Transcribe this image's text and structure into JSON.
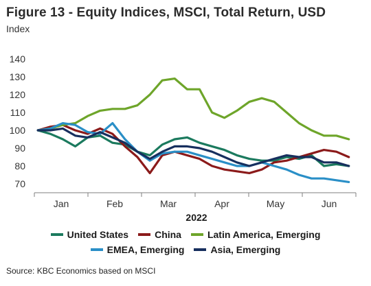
{
  "header": {
    "title": "Figure 13 - Equity Indices, MSCI, Total Return, USD",
    "subtitle": "Index"
  },
  "footer": {
    "source": "Source: KBC Economics based on MSCI"
  },
  "chart_data": {
    "type": "line",
    "title": "Figure 13 - Equity Indices, MSCI, Total Return, USD",
    "ylabel": "Index",
    "xlabel": "2022",
    "ylim": [
      70,
      140
    ],
    "yticks": [
      70,
      80,
      90,
      100,
      110,
      120,
      130,
      140
    ],
    "x_categories": [
      "Jan",
      "Feb",
      "Mar",
      "Apr",
      "May",
      "Jun"
    ],
    "grid": false,
    "legend_position": "bottom",
    "x": [
      "2022-01-03",
      "2022-01-10",
      "2022-01-17",
      "2022-01-24",
      "2022-01-31",
      "2022-02-07",
      "2022-02-14",
      "2022-02-21",
      "2022-02-28",
      "2022-03-07",
      "2022-03-14",
      "2022-03-21",
      "2022-03-28",
      "2022-04-04",
      "2022-04-11",
      "2022-04-18",
      "2022-04-25",
      "2022-05-02",
      "2022-05-09",
      "2022-05-16",
      "2022-05-23",
      "2022-05-30",
      "2022-06-06",
      "2022-06-13",
      "2022-06-20",
      "2022-06-27"
    ],
    "series": [
      {
        "name": "United States",
        "color": "#1b7a5e",
        "values": [
          100,
          98,
          95,
          91,
          96,
          97,
          93,
          92,
          88,
          86,
          92,
          95,
          96,
          93,
          91,
          89,
          86,
          84,
          83,
          83,
          85,
          84,
          86,
          80,
          81,
          80
        ]
      },
      {
        "name": "China",
        "color": "#8b1a1a",
        "values": [
          100,
          102,
          103,
          100,
          98,
          101,
          98,
          91,
          85,
          76,
          86,
          88,
          86,
          84,
          80,
          78,
          77,
          76,
          78,
          82,
          83,
          85,
          87,
          89,
          88,
          85
        ]
      },
      {
        "name": "Latin America, Emerging",
        "color": "#6ea52a",
        "values": [
          100,
          101,
          103,
          104,
          108,
          111,
          112,
          112,
          114,
          120,
          128,
          129,
          123,
          123,
          110,
          107,
          111,
          116,
          118,
          116,
          110,
          104,
          100,
          97,
          97,
          95
        ]
      },
      {
        "name": "EMEA, Emerging",
        "color": "#2a8fc7",
        "values": [
          100,
          101,
          104,
          103,
          99,
          98,
          104,
          95,
          88,
          83,
          87,
          88,
          88,
          86,
          84,
          82,
          80,
          80,
          82,
          80,
          78,
          75,
          73,
          73,
          72,
          71
        ]
      },
      {
        "name": "Asia, Emerging",
        "color": "#172f5e",
        "values": [
          100,
          100,
          101,
          97,
          96,
          99,
          96,
          93,
          88,
          84,
          88,
          91,
          91,
          90,
          88,
          85,
          82,
          80,
          82,
          84,
          86,
          85,
          85,
          82,
          82,
          80
        ]
      }
    ]
  }
}
